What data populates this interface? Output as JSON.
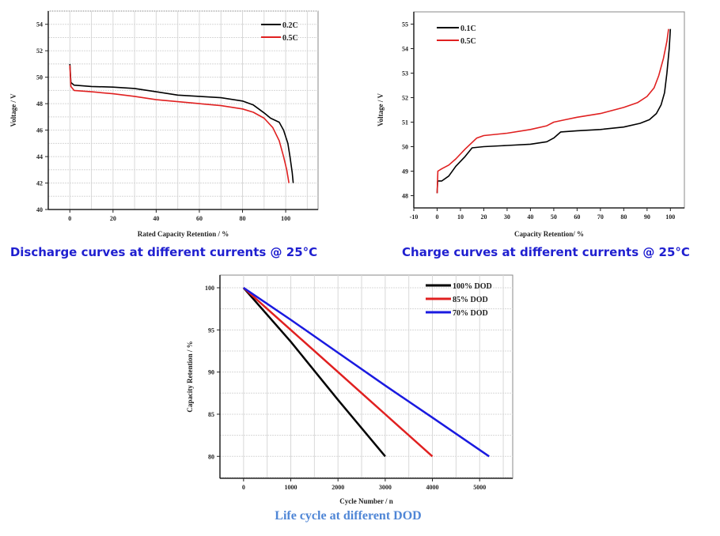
{
  "chart_data": [
    {
      "type": "line",
      "caption": "Discharge curves at different currents @ 25°C",
      "caption_color": "#1f1fd0",
      "xlabel": "Rated Capacity Retention / %",
      "ylabel": "Voltage / V",
      "xlim": [
        -10,
        115
      ],
      "ylim": [
        40,
        55
      ],
      "xticks": [
        0,
        20,
        40,
        60,
        80,
        100
      ],
      "yticks": [
        40,
        42,
        44,
        46,
        48,
        50,
        52,
        54
      ],
      "grid": true,
      "legend_position": "top-right",
      "series": [
        {
          "name": "0.2C",
          "color": "#000000",
          "x": [
            0,
            0.5,
            2,
            10,
            20,
            30,
            40,
            50,
            60,
            70,
            80,
            85,
            90,
            93,
            97,
            99,
            101,
            102,
            103,
            103.5
          ],
          "y": [
            51,
            49.6,
            49.4,
            49.3,
            49.25,
            49.15,
            48.9,
            48.65,
            48.55,
            48.45,
            48.2,
            47.9,
            47.3,
            46.9,
            46.6,
            46,
            45,
            44,
            42.8,
            42
          ]
        },
        {
          "name": "0.5C",
          "color": "#e02020",
          "x": [
            0,
            0.5,
            2,
            10,
            20,
            30,
            40,
            50,
            60,
            70,
            80,
            85,
            90,
            94,
            97,
            99,
            100.5,
            101.5
          ],
          "y": [
            50.9,
            49.3,
            49.0,
            48.9,
            48.75,
            48.55,
            48.3,
            48.15,
            48.0,
            47.85,
            47.6,
            47.35,
            46.9,
            46.2,
            45.2,
            44,
            43,
            42
          ]
        }
      ]
    },
    {
      "type": "line",
      "caption": "Charge curves at different currents @ 25°C",
      "caption_color": "#1f1fd0",
      "xlabel": "Capacity Retention/ %",
      "ylabel": "Voltage / V",
      "xlim": [
        -10,
        106
      ],
      "ylim": [
        47.5,
        55.5
      ],
      "xticks": [
        -10,
        0,
        10,
        20,
        30,
        40,
        50,
        60,
        70,
        80,
        90,
        100
      ],
      "yticks": [
        48,
        49,
        50,
        51,
        52,
        53,
        54,
        55
      ],
      "grid": false,
      "legend_position": "top-left",
      "series": [
        {
          "name": "0.1C",
          "color": "#000000",
          "x": [
            0,
            0.2,
            2,
            5,
            8,
            12,
            15,
            20,
            30,
            40,
            47,
            50,
            53,
            60,
            70,
            80,
            87,
            91,
            94,
            96,
            97.5,
            98.5,
            99.5,
            100
          ],
          "y": [
            48.1,
            48.6,
            48.6,
            48.8,
            49.2,
            49.6,
            49.95,
            50,
            50.05,
            50.1,
            50.2,
            50.35,
            50.6,
            50.65,
            50.7,
            50.8,
            50.95,
            51.1,
            51.35,
            51.7,
            52.2,
            53,
            54,
            54.8
          ]
        },
        {
          "name": "0.5C",
          "color": "#e02020",
          "x": [
            0,
            0.3,
            2,
            5,
            8,
            12,
            17,
            20,
            30,
            40,
            47,
            50,
            55,
            60,
            70,
            80,
            86,
            90,
            93,
            95,
            97,
            98.5,
            99.2
          ],
          "y": [
            48.1,
            49,
            49.1,
            49.25,
            49.5,
            49.9,
            50.35,
            50.45,
            50.55,
            50.7,
            50.85,
            51,
            51.1,
            51.2,
            51.35,
            51.6,
            51.8,
            52.05,
            52.4,
            52.9,
            53.6,
            54.3,
            54.8
          ]
        }
      ]
    },
    {
      "type": "line",
      "caption": "Life cycle at different DOD",
      "caption_color": "#4f86d6",
      "xlabel": "Cycle Number / n",
      "ylabel": "Capacity Retention / %",
      "xlim": [
        -500,
        5700
      ],
      "ylim": [
        77.4,
        101.5
      ],
      "xticks": [
        0,
        1000,
        2000,
        3000,
        4000,
        5000
      ],
      "yticks": [
        80,
        85,
        90,
        95,
        100
      ],
      "grid": true,
      "legend_position": "top-right",
      "series": [
        {
          "name": "100% DOD",
          "color": "#000000",
          "x": [
            0,
            1000,
            2000,
            3000
          ],
          "y": [
            100,
            93.6,
            86.7,
            80
          ]
        },
        {
          "name": "85% DOD",
          "color": "#e02020",
          "x": [
            0,
            1000,
            2000,
            3000,
            4000
          ],
          "y": [
            100,
            95,
            90,
            85,
            80
          ]
        },
        {
          "name": "70% DOD",
          "color": "#1a1ae0",
          "x": [
            0,
            1000,
            2000,
            3000,
            4000,
            5200
          ],
          "y": [
            100,
            96.2,
            92.3,
            88.4,
            84.6,
            80
          ]
        }
      ]
    }
  ]
}
